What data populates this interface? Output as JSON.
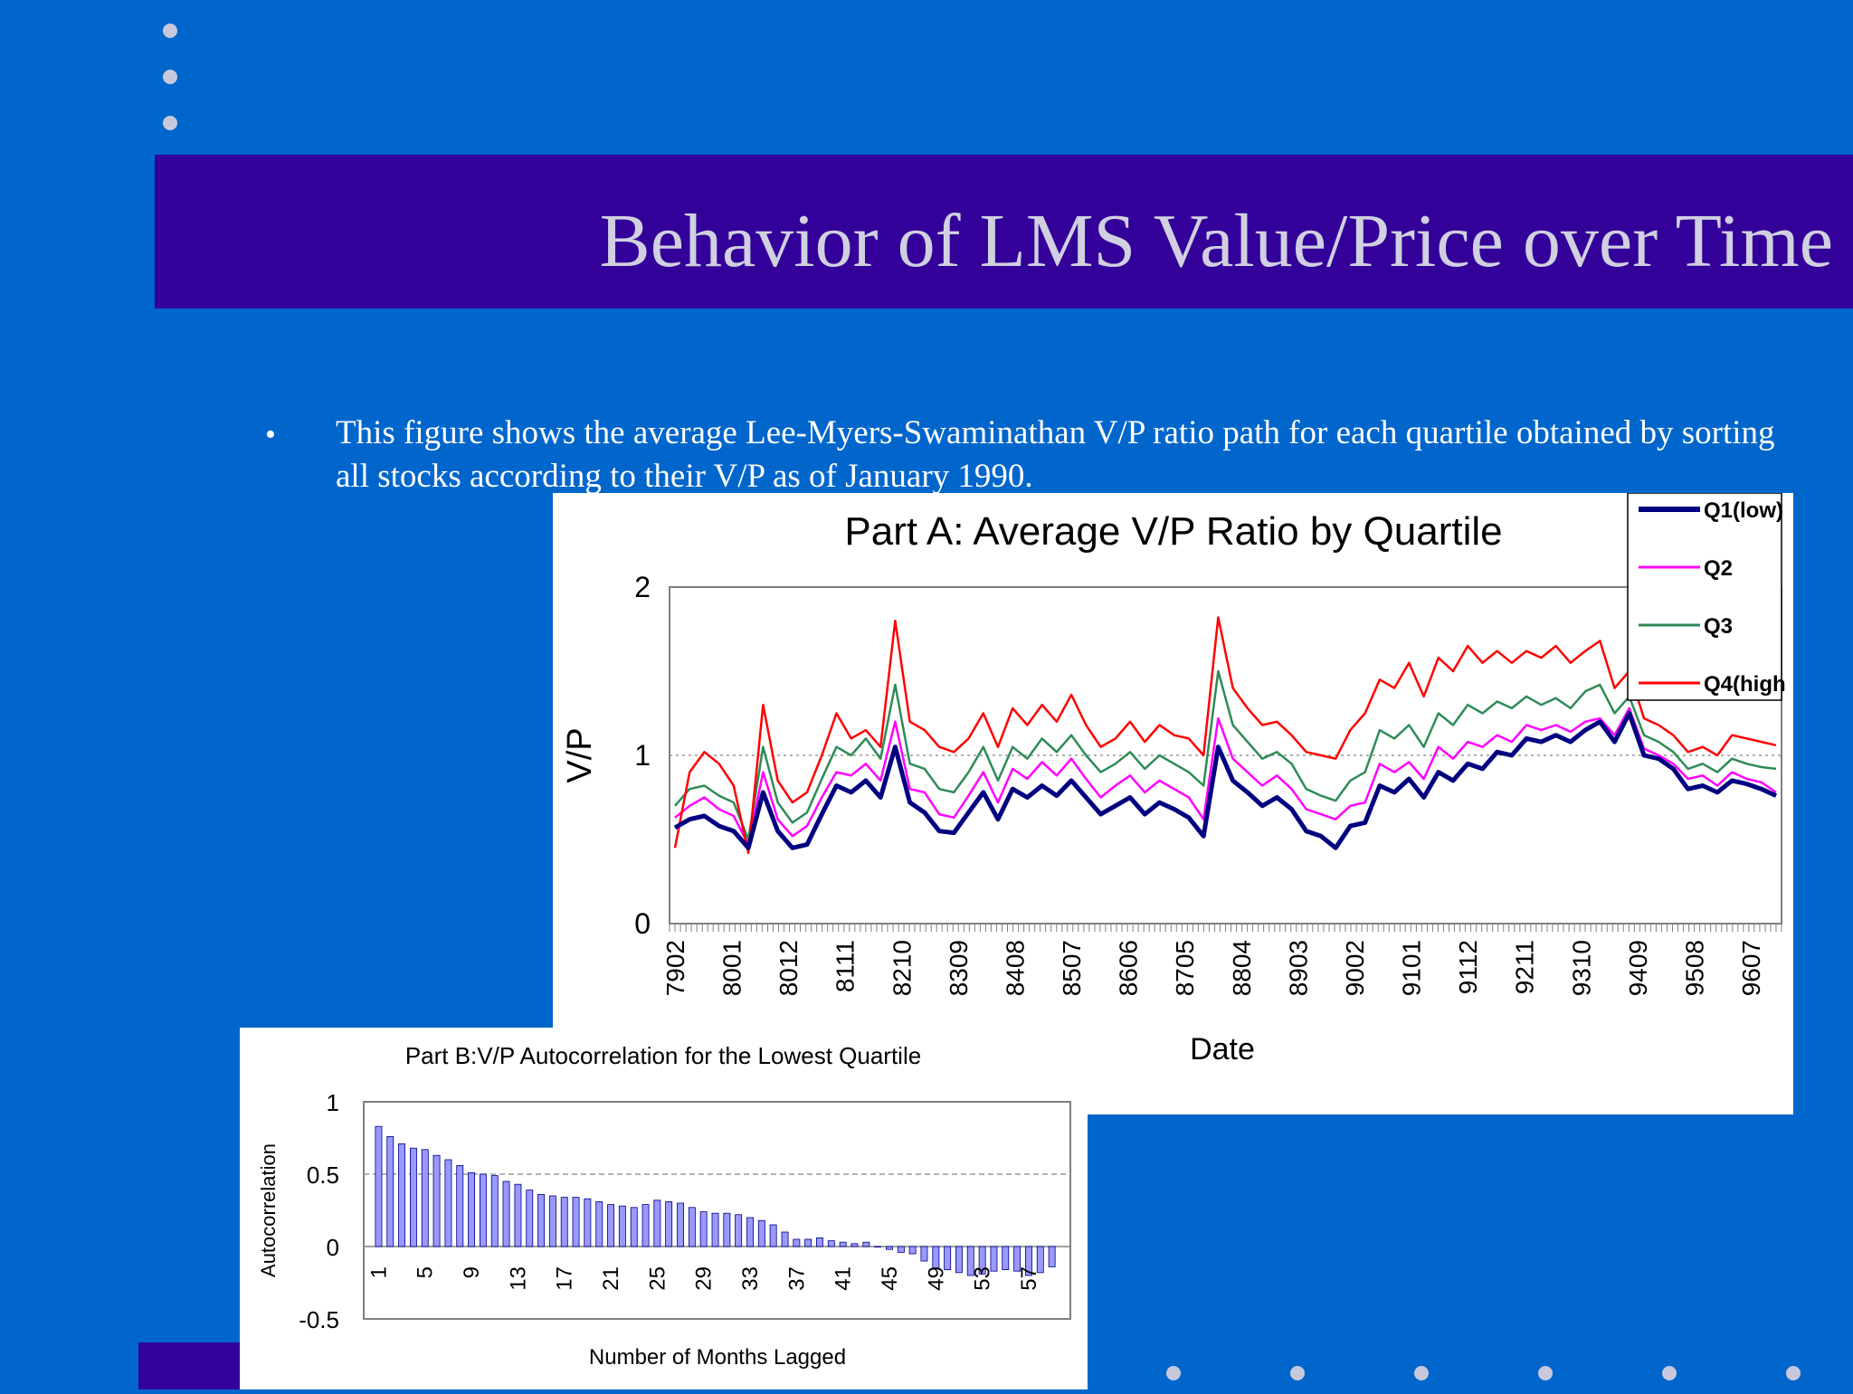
{
  "slide": {
    "title": "Behavior of LMS Value/Price over Time",
    "bullet": "This figure shows the average Lee-Myers-Swaminathan V/P ratio path for each quartile obtained by sorting all stocks according to their V/P as of January 1990.",
    "colors": {
      "background": "#0066cc",
      "title_band": "#330099",
      "title_text": "#d0d0e0"
    }
  },
  "chart_data": [
    {
      "type": "line",
      "title": "Part A: Average V/P Ratio by Quartile",
      "xlabel": "Date",
      "ylabel": "V/P",
      "ylim": [
        0,
        2
      ],
      "yticks": [
        "0",
        "1",
        "2"
      ],
      "grid": "dotted reference line at 1",
      "legend_placement": "top-right",
      "x_tick_labels": [
        "7902",
        "8001",
        "8012",
        "8111",
        "8210",
        "8309",
        "8408",
        "8507",
        "8606",
        "8705",
        "8804",
        "8903",
        "9002",
        "9101",
        "9112",
        "9211",
        "9310",
        "9409",
        "9508",
        "9607"
      ],
      "x": [
        "7902",
        "7905",
        "7908",
        "7911",
        "8002",
        "8005",
        "8008",
        "8011",
        "8102",
        "8105",
        "8108",
        "8111",
        "8202",
        "8205",
        "8208",
        "8210",
        "8211",
        "8302",
        "8305",
        "8308",
        "8311",
        "8402",
        "8405",
        "8408",
        "8411",
        "8502",
        "8505",
        "8508",
        "8511",
        "8602",
        "8605",
        "8608",
        "8611",
        "8702",
        "8705",
        "8708",
        "8710",
        "8711",
        "8802",
        "8805",
        "8808",
        "8811",
        "8902",
        "8905",
        "8908",
        "8911",
        "9002",
        "9005",
        "9008",
        "9011",
        "9102",
        "9105",
        "9108",
        "9111",
        "9202",
        "9205",
        "9208",
        "9211",
        "9302",
        "9305",
        "9308",
        "9311",
        "9402",
        "9405",
        "9408",
        "9409",
        "9411",
        "9502",
        "9505",
        "9508",
        "9511",
        "9602",
        "9605",
        "9608",
        "9611",
        "9702"
      ],
      "series": [
        {
          "name": "Q1(low)",
          "color": "#000080",
          "values": [
            0.57,
            0.62,
            0.64,
            0.58,
            0.55,
            0.45,
            0.78,
            0.55,
            0.45,
            0.47,
            0.65,
            0.82,
            0.78,
            0.85,
            0.75,
            1.05,
            0.72,
            0.66,
            0.55,
            0.54,
            0.66,
            0.78,
            0.62,
            0.8,
            0.75,
            0.82,
            0.76,
            0.85,
            0.75,
            0.65,
            0.7,
            0.75,
            0.65,
            0.72,
            0.68,
            0.63,
            0.52,
            1.05,
            0.85,
            0.78,
            0.7,
            0.75,
            0.68,
            0.55,
            0.52,
            0.45,
            0.58,
            0.6,
            0.82,
            0.78,
            0.86,
            0.75,
            0.9,
            0.85,
            0.95,
            0.92,
            1.02,
            1.0,
            1.1,
            1.08,
            1.12,
            1.08,
            1.15,
            1.2,
            1.08,
            1.25,
            1.0,
            0.98,
            0.92,
            0.8,
            0.82,
            0.78,
            0.85,
            0.83,
            0.8,
            0.76
          ]
        },
        {
          "name": "Q2",
          "color": "#ff00ff",
          "values": [
            0.63,
            0.7,
            0.75,
            0.68,
            0.64,
            0.47,
            0.9,
            0.62,
            0.52,
            0.58,
            0.75,
            0.9,
            0.88,
            0.95,
            0.85,
            1.2,
            0.8,
            0.78,
            0.65,
            0.63,
            0.76,
            0.9,
            0.72,
            0.92,
            0.86,
            0.96,
            0.88,
            0.98,
            0.86,
            0.75,
            0.82,
            0.88,
            0.78,
            0.85,
            0.8,
            0.75,
            0.62,
            1.22,
            0.98,
            0.9,
            0.82,
            0.88,
            0.8,
            0.68,
            0.65,
            0.62,
            0.7,
            0.72,
            0.95,
            0.9,
            0.96,
            0.86,
            1.05,
            0.98,
            1.08,
            1.05,
            1.12,
            1.08,
            1.18,
            1.15,
            1.18,
            1.14,
            1.2,
            1.22,
            1.12,
            1.28,
            1.04,
            1.0,
            0.95,
            0.86,
            0.88,
            0.82,
            0.9,
            0.86,
            0.84,
            0.78
          ]
        },
        {
          "name": "Q3",
          "color": "#2e8b57",
          "values": [
            0.7,
            0.8,
            0.82,
            0.76,
            0.72,
            0.5,
            1.05,
            0.72,
            0.6,
            0.66,
            0.86,
            1.05,
            1.0,
            1.1,
            0.98,
            1.42,
            0.95,
            0.92,
            0.8,
            0.78,
            0.9,
            1.05,
            0.85,
            1.05,
            0.98,
            1.1,
            1.02,
            1.12,
            1.0,
            0.9,
            0.95,
            1.02,
            0.92,
            1.0,
            0.95,
            0.9,
            0.82,
            1.5,
            1.18,
            1.08,
            0.98,
            1.02,
            0.95,
            0.8,
            0.76,
            0.73,
            0.85,
            0.9,
            1.15,
            1.1,
            1.18,
            1.05,
            1.25,
            1.18,
            1.3,
            1.25,
            1.32,
            1.28,
            1.35,
            1.3,
            1.34,
            1.28,
            1.38,
            1.42,
            1.25,
            1.35,
            1.12,
            1.08,
            1.02,
            0.92,
            0.95,
            0.9,
            0.98,
            0.95,
            0.93,
            0.92
          ]
        },
        {
          "name": "Q4(high",
          "color": "#ff0000",
          "values": [
            0.45,
            0.9,
            1.02,
            0.95,
            0.82,
            0.42,
            1.3,
            0.85,
            0.72,
            0.78,
            1.0,
            1.25,
            1.1,
            1.15,
            1.05,
            1.8,
            1.2,
            1.15,
            1.05,
            1.02,
            1.1,
            1.25,
            1.05,
            1.28,
            1.18,
            1.3,
            1.2,
            1.36,
            1.18,
            1.05,
            1.1,
            1.2,
            1.08,
            1.18,
            1.12,
            1.1,
            1.0,
            1.82,
            1.4,
            1.28,
            1.18,
            1.2,
            1.12,
            1.02,
            1.0,
            0.98,
            1.15,
            1.25,
            1.45,
            1.4,
            1.55,
            1.35,
            1.58,
            1.5,
            1.65,
            1.55,
            1.62,
            1.55,
            1.62,
            1.58,
            1.65,
            1.55,
            1.62,
            1.68,
            1.4,
            1.5,
            1.22,
            1.18,
            1.12,
            1.02,
            1.05,
            1.0,
            1.12,
            1.1,
            1.08,
            1.06
          ]
        }
      ]
    },
    {
      "type": "bar",
      "title": "Part B:V/P Autocorrelation for the Lowest Quartile",
      "xlabel": "Number of Months Lagged",
      "ylabel": "Autocorrelation",
      "ylim": [
        -0.5,
        1
      ],
      "yticks": [
        "1",
        "0.5",
        "0",
        "-0.5"
      ],
      "grid": "dashed line at 0.5",
      "bar_color": "#9999ff",
      "x_tick_labels": [
        "1",
        "5",
        "9",
        "13",
        "17",
        "21",
        "25",
        "29",
        "33",
        "37",
        "41",
        "45",
        "49",
        "53",
        "57"
      ],
      "categories": [
        1,
        2,
        3,
        4,
        5,
        6,
        7,
        8,
        9,
        10,
        11,
        12,
        13,
        14,
        15,
        16,
        17,
        18,
        19,
        20,
        21,
        22,
        23,
        24,
        25,
        26,
        27,
        28,
        29,
        30,
        31,
        32,
        33,
        34,
        35,
        36,
        37,
        38,
        39,
        40,
        41,
        42,
        43,
        44,
        45,
        46,
        47,
        48,
        49,
        50,
        51,
        52,
        53,
        54,
        55,
        56,
        57,
        58,
        59
      ],
      "values": [
        0.83,
        0.76,
        0.71,
        0.68,
        0.67,
        0.63,
        0.6,
        0.56,
        0.51,
        0.5,
        0.49,
        0.45,
        0.43,
        0.39,
        0.36,
        0.35,
        0.34,
        0.34,
        0.33,
        0.31,
        0.29,
        0.28,
        0.27,
        0.29,
        0.32,
        0.31,
        0.3,
        0.27,
        0.24,
        0.23,
        0.23,
        0.22,
        0.2,
        0.18,
        0.15,
        0.1,
        0.05,
        0.05,
        0.06,
        0.04,
        0.03,
        0.02,
        0.03,
        0.0,
        -0.02,
        -0.04,
        -0.05,
        -0.1,
        -0.15,
        -0.16,
        -0.18,
        -0.2,
        -0.19,
        -0.17,
        -0.16,
        -0.17,
        -0.2,
        -0.18,
        -0.14
      ]
    }
  ]
}
